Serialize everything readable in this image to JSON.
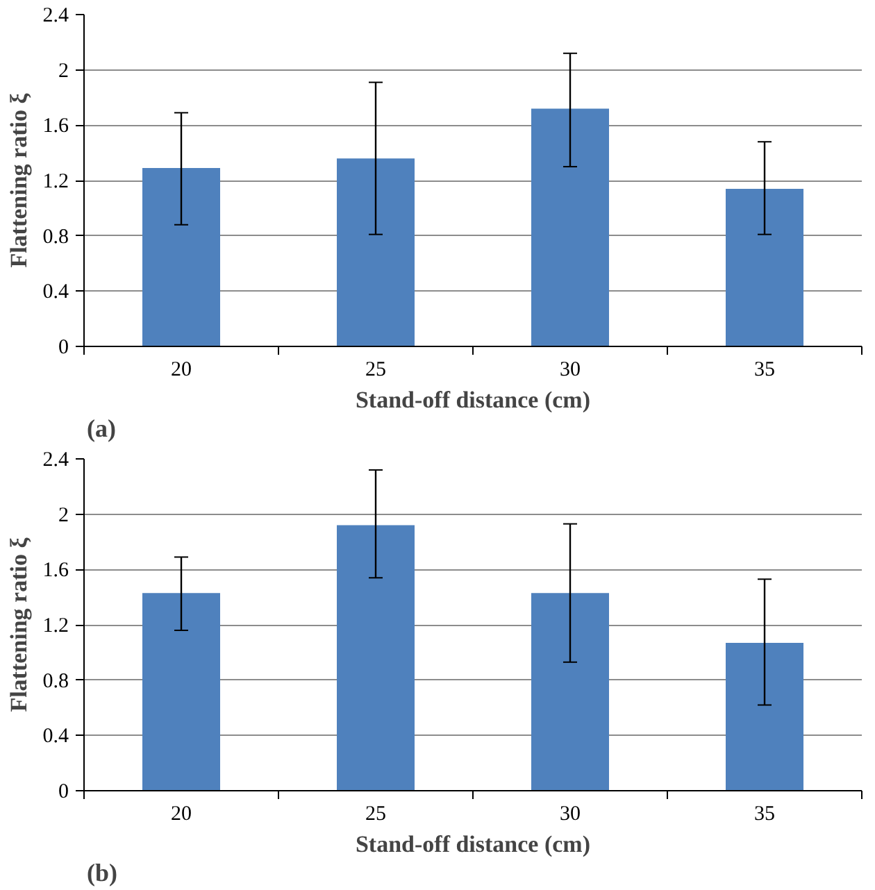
{
  "chart_data": [
    {
      "type": "bar",
      "categories": [
        "20",
        "25",
        "30",
        "35"
      ],
      "values": [
        1.29,
        1.36,
        1.72,
        1.14
      ],
      "color": "#4f81bd",
      "errors": [
        [
          0.88,
          1.69
        ],
        [
          0.81,
          1.91
        ],
        [
          1.3,
          2.12
        ],
        [
          0.81,
          1.48
        ]
      ],
      "ylim": [
        0,
        2.4
      ],
      "yticks": [
        0,
        0.4,
        0.8,
        1.2,
        1.6,
        2,
        2.4
      ],
      "grid": "y",
      "xlabel": "Stand-off distance (cm)",
      "ylabel": "Flattening ratio ξ",
      "annotations": [
        "(a)"
      ]
    },
    {
      "type": "bar",
      "categories": [
        "20",
        "25",
        "30",
        "35"
      ],
      "values": [
        1.43,
        1.92,
        1.43,
        1.07
      ],
      "color": "#4f81bd",
      "errors": [
        [
          1.16,
          1.69
        ],
        [
          1.54,
          2.32
        ],
        [
          0.93,
          1.93
        ],
        [
          0.62,
          1.53
        ]
      ],
      "ylim": [
        0,
        2.4
      ],
      "yticks": [
        0,
        0.4,
        0.8,
        1.2,
        1.6,
        2,
        2.4
      ],
      "grid": "y",
      "xlabel": "Stand-off distance (cm)",
      "ylabel": "Flattening ratio ξ",
      "annotations": [
        "(b)"
      ]
    }
  ]
}
